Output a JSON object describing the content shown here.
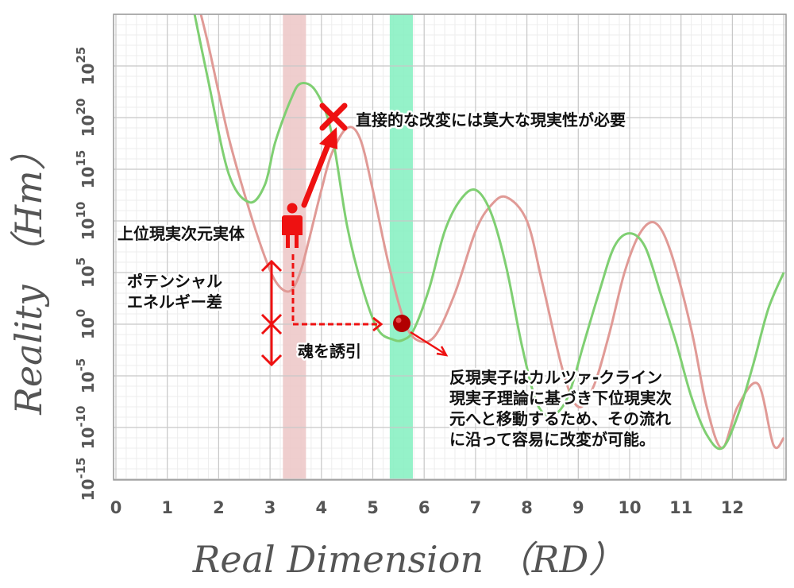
{
  "chart_data": {
    "type": "line",
    "xlabel": "Real Dimension （RD）",
    "ylabel": "Reality （Hm）",
    "xlim": [
      0,
      13
    ],
    "ylim": [
      -15,
      30
    ],
    "y_scale": "log",
    "x_ticks": [
      "0",
      "1",
      "2",
      "3",
      "4",
      "5",
      "6",
      "7",
      "8",
      "9",
      "10",
      "11",
      "12"
    ],
    "y_ticks": [
      {
        "base": "10",
        "exp": "-15",
        "value": -15
      },
      {
        "base": "10",
        "exp": "-10",
        "value": -10
      },
      {
        "base": "10",
        "exp": "-5",
        "value": -5
      },
      {
        "base": "10",
        "exp": "0",
        "value": 0
      },
      {
        "base": "10",
        "exp": "5",
        "value": 5
      },
      {
        "base": "10",
        "exp": "10",
        "value": 10
      },
      {
        "base": "10",
        "exp": "15",
        "value": 15
      },
      {
        "base": "10",
        "exp": "20",
        "value": 20
      },
      {
        "base": "10",
        "exp": "25",
        "value": 25
      }
    ],
    "grid": true,
    "series": [
      {
        "color": "#e09a96",
        "x": [
          1.55,
          1.8,
          2.2,
          2.6,
          2.9,
          3.1,
          3.3,
          3.45,
          3.6,
          3.75,
          4.0,
          4.2,
          4.5,
          4.75,
          5.0,
          5.3,
          5.6,
          5.85,
          6.2,
          6.6,
          7.0,
          7.3,
          7.6,
          8.0,
          8.3,
          8.7,
          9.0,
          9.3,
          9.6,
          9.9,
          10.2,
          10.5,
          10.8,
          11.2,
          11.5,
          11.8,
          12.1,
          12.5,
          12.8,
          13.0
        ],
        "y": [
          32,
          27,
          18,
          11,
          6.5,
          4.2,
          3.2,
          3.5,
          5.2,
          8,
          13,
          16.5,
          19,
          18,
          13,
          6,
          0.5,
          -1.5,
          -1.2,
          3,
          9,
          11.5,
          12.3,
          10,
          4,
          -4.5,
          -8,
          -6,
          -1,
          5,
          8.8,
          9.8,
          7,
          -0.5,
          -8,
          -12,
          -8,
          -5.8,
          -11.7,
          -11
        ]
      },
      {
        "color": "#7fcf72",
        "x": [
          1.45,
          1.8,
          2.2,
          2.6,
          2.9,
          3.1,
          3.4,
          3.6,
          3.9,
          4.2,
          4.5,
          4.8,
          5.1,
          5.4,
          5.6,
          5.8,
          6.1,
          6.4,
          6.7,
          7.0,
          7.3,
          7.6,
          7.9,
          8.2,
          8.5,
          8.8,
          9.1,
          9.4,
          9.7,
          10.0,
          10.3,
          10.6,
          10.9,
          11.2,
          11.5,
          11.8,
          12.1,
          12.4,
          12.7,
          13.0
        ],
        "y": [
          32,
          23.5,
          14.5,
          11.8,
          13.5,
          17.6,
          21.7,
          23.3,
          22.5,
          18.5,
          9.5,
          3.5,
          -0.5,
          -1.5,
          -1.5,
          -0.5,
          3.5,
          9,
          12,
          13,
          10.8,
          5.5,
          -2,
          -7.7,
          -8.8,
          -7,
          -2,
          3,
          7.5,
          8.8,
          7.5,
          3,
          -1.7,
          -7,
          -10.7,
          -12,
          -8.9,
          -4,
          1.5,
          5
        ]
      }
    ],
    "bands": [
      {
        "x_from": 3.25,
        "x_to": 3.7,
        "color": "#ecc5c5"
      },
      {
        "x_from": 5.33,
        "x_to": 5.78,
        "color": "#82f0c0"
      }
    ],
    "annotations": {
      "upper_entity": "上位現実次元実体",
      "potential_1": "ポテンシャル",
      "potential_2": "エネルギー差",
      "target": "直接的な改変には莫大な現実性が必要",
      "induce": "魂を誘引",
      "explain_1": "反現実子はカルツァ-クライン",
      "explain_2": "現実子理論に基づき下位現実次",
      "explain_3": "元へと移動するため、その流れ",
      "explain_4": "に沿って容易に改変が可能。"
    },
    "colors": {
      "arrow_red": "#ee1111",
      "soul_dot": "#b20000",
      "grid_major": "#c8c8c8",
      "grid_minor": "#ededed",
      "axis_text": "#555555"
    }
  }
}
